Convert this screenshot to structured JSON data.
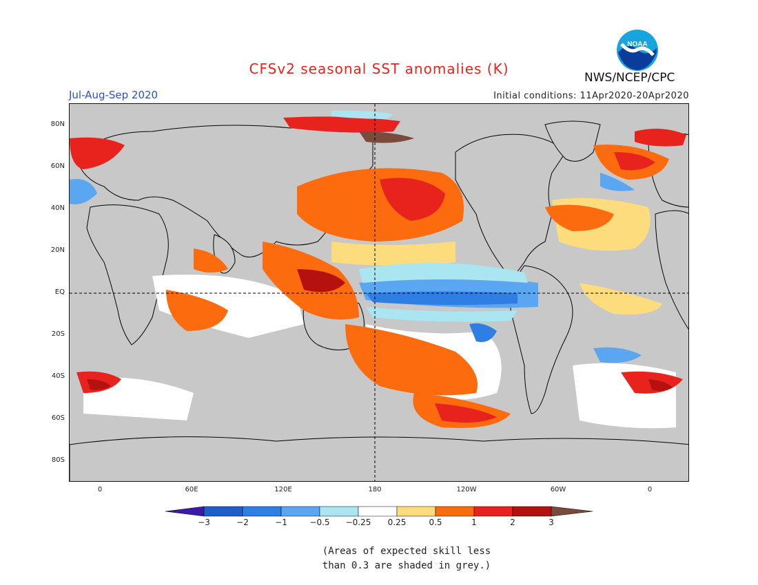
{
  "header": {
    "title": "CFSv2 seasonal SST anomalies (K)",
    "season": "Jul-Aug-Sep 2020",
    "initial_conditions": "Initial conditions: 11Apr2020-20Apr2020",
    "agency": "NWS/NCEP/CPC",
    "logo_text": "NOAA"
  },
  "map": {
    "lat_labels": [
      "80N",
      "60N",
      "40N",
      "20N",
      "EQ",
      "20S",
      "40S",
      "60S",
      "80S"
    ],
    "lon_labels": [
      "0",
      "60E",
      "120E",
      "180",
      "120W",
      "60W",
      "0"
    ],
    "grey_meaning": "skill less than 0.3",
    "colors": {
      "land": "#c8c8c8",
      "neutral": "#ffffff",
      "pos_025_05": "#fddc7e",
      "pos_05_1": "#fc6b0e",
      "pos_1_2": "#e8231e",
      "pos_2_3": "#b5120f",
      "pos_3_plus": "#7a4a3c",
      "neg_025_05": "#a9e6f2",
      "neg_05_1": "#5aa6f0",
      "neg_1_2": "#2e7ee4",
      "neg_2_3": "#1e5ec6"
    }
  },
  "colorbar": {
    "labels": [
      "−3",
      "−2",
      "−1",
      "−0.5",
      "−0.25",
      "0.25",
      "0.5",
      "1",
      "2",
      "3"
    ],
    "colors": [
      "#3a1aa8",
      "#1e5ec6",
      "#2e7ee4",
      "#5aa6f0",
      "#a9e6f2",
      "#ffffff",
      "#fddc7e",
      "#fc6b0e",
      "#e8231e",
      "#b5120f",
      "#7a4a3c"
    ]
  },
  "note": {
    "line1": "(Areas of expected skill less",
    "line2": "than 0.3 are shaded in grey.)"
  }
}
